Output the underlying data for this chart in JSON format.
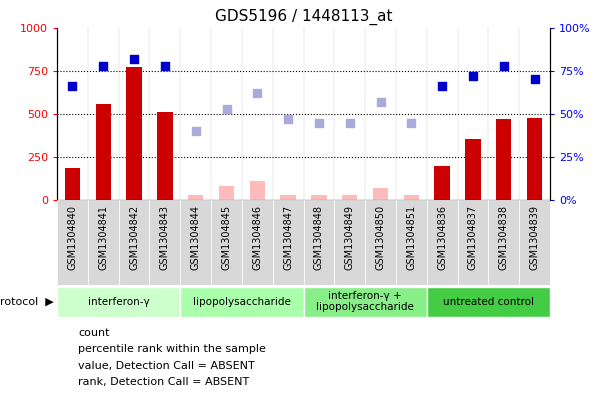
{
  "title": "GDS5196 / 1448113_at",
  "samples": [
    "GSM1304840",
    "GSM1304841",
    "GSM1304842",
    "GSM1304843",
    "GSM1304844",
    "GSM1304845",
    "GSM1304846",
    "GSM1304847",
    "GSM1304848",
    "GSM1304849",
    "GSM1304850",
    "GSM1304851",
    "GSM1304836",
    "GSM1304837",
    "GSM1304838",
    "GSM1304839"
  ],
  "count_values": [
    190,
    560,
    770,
    510,
    null,
    null,
    null,
    null,
    null,
    null,
    null,
    null,
    200,
    355,
    470,
    475
  ],
  "count_absent": [
    null,
    null,
    null,
    null,
    30,
    85,
    110,
    30,
    30,
    30,
    70,
    30,
    null,
    null,
    null,
    null
  ],
  "rank_present": [
    66,
    78,
    82,
    78,
    null,
    null,
    null,
    null,
    null,
    null,
    null,
    null,
    66,
    72,
    78,
    70
  ],
  "rank_absent": [
    null,
    null,
    null,
    null,
    40,
    53,
    62,
    47,
    45,
    45,
    57,
    45,
    null,
    null,
    null,
    null
  ],
  "protocols": [
    {
      "label": "interferon-γ",
      "start": 0,
      "end": 4,
      "color": "#ccffcc"
    },
    {
      "label": "lipopolysaccharide",
      "start": 4,
      "end": 8,
      "color": "#aaffaa"
    },
    {
      "label": "interferon-γ +\nlipopolysaccharide",
      "start": 8,
      "end": 12,
      "color": "#88ee88"
    },
    {
      "label": "untreated control",
      "start": 12,
      "end": 16,
      "color": "#44cc44"
    }
  ],
  "ylim_left": [
    0,
    1000
  ],
  "ylim_right": [
    0,
    100
  ],
  "yticks_left": [
    0,
    250,
    500,
    750,
    1000
  ],
  "yticks_right": [
    0,
    25,
    50,
    75,
    100
  ],
  "bar_width": 0.5,
  "bar_color_present": "#cc0000",
  "bar_color_absent": "#ffbbbb",
  "dot_color_present": "#0000cc",
  "dot_color_absent": "#aaaadd",
  "xtick_bg": "#d8d8d8",
  "plot_bg": "#ffffff",
  "fig_bg": "#ffffff",
  "title_fontsize": 11,
  "legend_items": [
    {
      "color": "#cc0000",
      "label": "count"
    },
    {
      "color": "#0000cc",
      "label": "percentile rank within the sample"
    },
    {
      "color": "#ffbbbb",
      "label": "value, Detection Call = ABSENT"
    },
    {
      "color": "#aaaadd",
      "label": "rank, Detection Call = ABSENT"
    }
  ]
}
